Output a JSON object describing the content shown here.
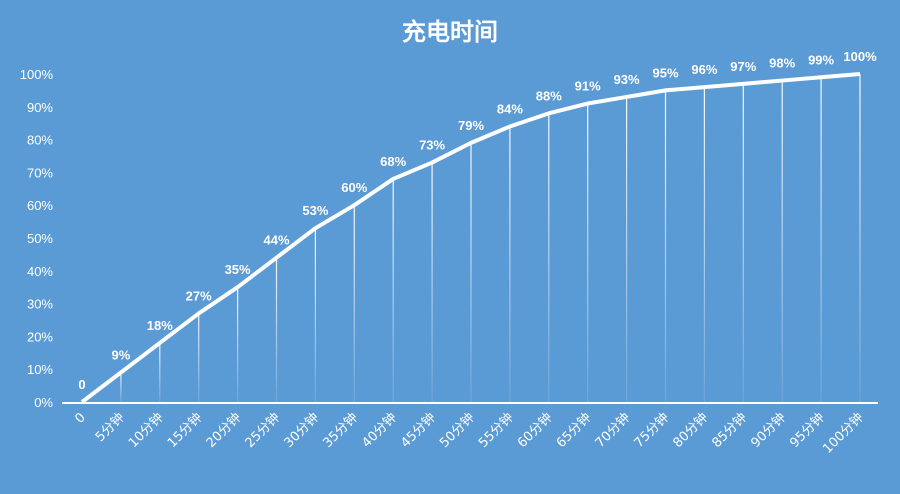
{
  "chart_data": {
    "type": "line",
    "title": "充电时间",
    "xlabel": "",
    "ylabel": "",
    "categories": [
      "0",
      "5分钟",
      "10分钟",
      "15分钟",
      "20分钟",
      "25分钟",
      "30分钟",
      "35分钟",
      "40分钟",
      "45分钟",
      "50分钟",
      "55分钟",
      "60分钟",
      "65分钟",
      "70分钟",
      "75分钟",
      "80分钟",
      "85分钟",
      "90分钟",
      "95分钟",
      "100分钟"
    ],
    "values": [
      0,
      9,
      18,
      27,
      35,
      44,
      53,
      60,
      68,
      73,
      79,
      84,
      88,
      91,
      93,
      95,
      96,
      97,
      98,
      99,
      100
    ],
    "data_labels": [
      "0",
      "9%",
      "18%",
      "27%",
      "35%",
      "44%",
      "53%",
      "60%",
      "68%",
      "73%",
      "79%",
      "84%",
      "88%",
      "91%",
      "93%",
      "95%",
      "96%",
      "97%",
      "98%",
      "99%",
      "100%"
    ],
    "ylim": [
      0,
      100
    ],
    "yticks": [
      "0%",
      "10%",
      "20%",
      "30%",
      "40%",
      "50%",
      "60%",
      "70%",
      "80%",
      "90%",
      "100%"
    ],
    "grid": false,
    "drop_lines": true,
    "colors": {
      "background": "#5b9bd5",
      "line": "#ffffff"
    }
  }
}
